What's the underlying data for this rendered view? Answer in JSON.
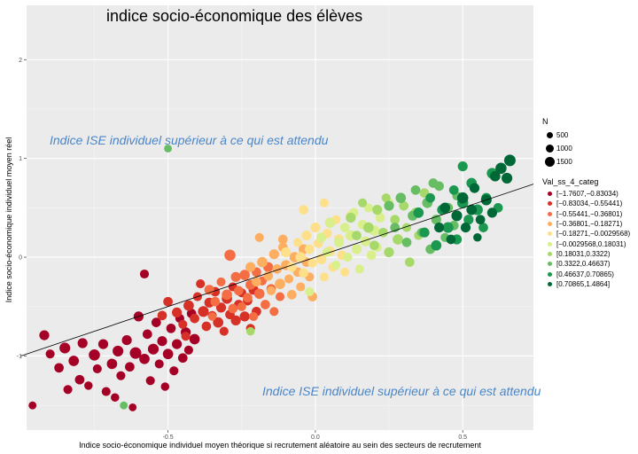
{
  "chart_data": {
    "type": "scatter",
    "title": "indice socio-économique des élèves",
    "xlabel": "Indice socio-économique individuel moyen théorique si recrutement aléatoire au sein des secteurs de recrutement",
    "ylabel": "Indice socio-économique individuel moyen réel",
    "xlim": [
      -0.98,
      0.74
    ],
    "ylim": [
      -1.75,
      2.55
    ],
    "x_ticks": [
      "-0.5",
      "0.0",
      "0.5"
    ],
    "x_tick_values": [
      -0.5,
      0.0,
      0.5
    ],
    "y_ticks": [
      "-1",
      "0",
      "1",
      "2"
    ],
    "y_tick_values": [
      -1,
      0,
      1,
      2
    ],
    "grid": true,
    "annotations": [
      {
        "text": "Indice ISE individuel supérieur à ce qui est attendu",
        "x": -0.91,
        "y": 1.27
      },
      {
        "text": "Indice ISE individuel supérieur à ce qui est attendu",
        "x": -0.19,
        "y": -1.35
      }
    ],
    "regression_line": {
      "x0": -1.0,
      "y0": -1.0,
      "x1": 0.74,
      "y1": 0.74
    },
    "size_legend": {
      "title": "N",
      "entries": [
        {
          "label": "500",
          "value": 500
        },
        {
          "label": "1000",
          "value": 1000
        },
        {
          "label": "1500",
          "value": 1500
        }
      ]
    },
    "color_legend": {
      "title": "Val_ss_4_categ",
      "categories": [
        {
          "label": "[−1.7607,−0.83034)",
          "color": "#a50026"
        },
        {
          "label": "[−0.83034,−0.55441)",
          "color": "#d73027"
        },
        {
          "label": "[−0.55441,−0.36801)",
          "color": "#f46d43"
        },
        {
          "label": "[−0.36801,−0.18271)",
          "color": "#fdae61"
        },
        {
          "label": "[−0.18271,−0.0029568)",
          "color": "#fee08b"
        },
        {
          "label": "[−0.0029568,0.18031)",
          "color": "#d9ef8b"
        },
        {
          "label": "[0.18031,0.3322)",
          "color": "#a6d96a"
        },
        {
          "label": "[0.3322,0.46637)",
          "color": "#66bd63"
        },
        {
          "label": "[0.46637,0.70865)",
          "color": "#1a9850"
        },
        {
          "label": "[0.70865,1.4864]",
          "color": "#006837"
        }
      ]
    },
    "points": [
      [
        -0.92,
        -0.79,
        400,
        0
      ],
      [
        -0.9,
        -0.98,
        300,
        0
      ],
      [
        -0.87,
        -1.12,
        350,
        0
      ],
      [
        -0.85,
        -0.92,
        500,
        0
      ],
      [
        -0.84,
        -1.34,
        300,
        0
      ],
      [
        -0.82,
        -1.05,
        450,
        0
      ],
      [
        -0.8,
        -1.24,
        350,
        0
      ],
      [
        -0.79,
        -0.87,
        400,
        0
      ],
      [
        -0.77,
        -1.3,
        250,
        0
      ],
      [
        -0.75,
        -0.99,
        550,
        0
      ],
      [
        -0.74,
        -1.13,
        300,
        0
      ],
      [
        -0.72,
        -0.88,
        400,
        0
      ],
      [
        -0.71,
        -1.36,
        300,
        0
      ],
      [
        -0.69,
        -1.08,
        450,
        0
      ],
      [
        -0.68,
        -1.42,
        250,
        0
      ],
      [
        -0.67,
        -0.95,
        500,
        0
      ],
      [
        -0.66,
        -1.2,
        300,
        0
      ],
      [
        -0.64,
        -0.84,
        400,
        0
      ],
      [
        -0.63,
        -1.11,
        350,
        0
      ],
      [
        -0.62,
        -1.52,
        200,
        0
      ],
      [
        -0.61,
        -0.97,
        600,
        0
      ],
      [
        -0.6,
        -0.6,
        400,
        0
      ],
      [
        -0.58,
        -1.03,
        450,
        0
      ],
      [
        -0.57,
        -0.78,
        350,
        0
      ],
      [
        -0.56,
        -1.25,
        300,
        0
      ],
      [
        -0.55,
        -0.93,
        500,
        0
      ],
      [
        -0.54,
        -0.66,
        350,
        0
      ],
      [
        -0.53,
        -1.08,
        300,
        0
      ],
      [
        -0.52,
        -0.85,
        400,
        0
      ],
      [
        -0.51,
        -1.31,
        250,
        0
      ],
      [
        -0.5,
        -0.98,
        450,
        0
      ],
      [
        -0.49,
        -0.72,
        350,
        0
      ],
      [
        -0.48,
        -1.15,
        300,
        0
      ],
      [
        -0.47,
        -0.88,
        400,
        0
      ],
      [
        -0.46,
        -0.62,
        300,
        0
      ],
      [
        -0.45,
        -1.02,
        350,
        0
      ],
      [
        -0.44,
        -0.76,
        400,
        0
      ],
      [
        -0.43,
        -0.94,
        300,
        0
      ],
      [
        -0.42,
        -0.57,
        350,
        0
      ],
      [
        -0.41,
        -0.83,
        450,
        0
      ],
      [
        -0.96,
        -1.5,
        200,
        0
      ],
      [
        -0.58,
        -0.17,
        300,
        0
      ],
      [
        -0.5,
        -0.45,
        350,
        1
      ],
      [
        -0.47,
        -0.56,
        400,
        1
      ],
      [
        -0.45,
        -0.68,
        300,
        1
      ],
      [
        -0.43,
        -0.49,
        450,
        1
      ],
      [
        -0.41,
        -0.62,
        350,
        1
      ],
      [
        -0.4,
        -0.4,
        300,
        1
      ],
      [
        -0.38,
        -0.55,
        500,
        1
      ],
      [
        -0.37,
        -0.7,
        350,
        1
      ],
      [
        -0.36,
        -0.46,
        400,
        1
      ],
      [
        -0.35,
        -0.59,
        300,
        1
      ],
      [
        -0.34,
        -0.35,
        350,
        1
      ],
      [
        -0.33,
        -0.66,
        450,
        1
      ],
      [
        -0.32,
        -0.51,
        400,
        1
      ],
      [
        -0.31,
        -0.75,
        300,
        1
      ],
      [
        -0.3,
        -0.42,
        450,
        1
      ],
      [
        -0.29,
        -0.58,
        350,
        1
      ],
      [
        -0.28,
        -0.3,
        300,
        1
      ],
      [
        -0.27,
        -0.64,
        400,
        1
      ],
      [
        -0.26,
        -0.48,
        350,
        1
      ],
      [
        -0.25,
        -0.36,
        300,
        1
      ],
      [
        -0.24,
        -0.6,
        400,
        1
      ],
      [
        -0.23,
        -0.44,
        350,
        1
      ],
      [
        -0.22,
        -0.72,
        300,
        1
      ],
      [
        -0.21,
        -0.33,
        400,
        1
      ],
      [
        -0.2,
        -0.55,
        350,
        1
      ],
      [
        -0.44,
        -0.8,
        300,
        1
      ],
      [
        -0.52,
        -0.59,
        350,
        1
      ],
      [
        -0.39,
        -0.27,
        300,
        1
      ],
      [
        -0.36,
        -0.33,
        400,
        2
      ],
      [
        -0.34,
        -0.45,
        350,
        2
      ],
      [
        -0.32,
        -0.25,
        300,
        2
      ],
      [
        -0.3,
        -0.38,
        450,
        2
      ],
      [
        -0.28,
        -0.52,
        350,
        2
      ],
      [
        -0.27,
        -0.2,
        400,
        2
      ],
      [
        -0.26,
        -0.34,
        350,
        2
      ],
      [
        -0.25,
        -0.5,
        300,
        2
      ],
      [
        -0.24,
        -0.18,
        450,
        2
      ],
      [
        -0.23,
        -0.41,
        350,
        2
      ],
      [
        -0.22,
        -0.28,
        400,
        2
      ],
      [
        -0.21,
        -0.6,
        300,
        2
      ],
      [
        -0.2,
        -0.15,
        350,
        2
      ],
      [
        -0.19,
        -0.37,
        450,
        2
      ],
      [
        -0.18,
        -0.24,
        300,
        2
      ],
      [
        -0.17,
        -0.48,
        350,
        2
      ],
      [
        -0.16,
        -0.1,
        400,
        2
      ],
      [
        -0.15,
        -0.32,
        350,
        2
      ],
      [
        -0.14,
        -0.55,
        300,
        2
      ],
      [
        -0.29,
        0.02,
        550,
        2
      ],
      [
        -0.12,
        -0.4,
        300,
        2
      ],
      [
        -0.35,
        -0.6,
        250,
        2
      ],
      [
        -0.22,
        -0.1,
        400,
        3
      ],
      [
        -0.2,
        -0.25,
        350,
        3
      ],
      [
        -0.18,
        -0.05,
        450,
        3
      ],
      [
        -0.16,
        -0.19,
        350,
        3
      ],
      [
        -0.15,
        -0.34,
        300,
        3
      ],
      [
        -0.14,
        0.03,
        400,
        3
      ],
      [
        -0.13,
        -0.12,
        350,
        3
      ],
      [
        -0.12,
        -0.27,
        450,
        3
      ],
      [
        -0.11,
        0.1,
        350,
        3
      ],
      [
        -0.1,
        -0.08,
        400,
        3
      ],
      [
        -0.09,
        -0.22,
        300,
        3
      ],
      [
        -0.08,
        -0.38,
        350,
        3
      ],
      [
        -0.07,
        0.0,
        450,
        3
      ],
      [
        -0.06,
        -0.15,
        350,
        3
      ],
      [
        -0.05,
        -0.3,
        300,
        3
      ],
      [
        -0.04,
        0.08,
        400,
        3
      ],
      [
        -0.03,
        -0.05,
        350,
        3
      ],
      [
        -0.02,
        -0.2,
        300,
        3
      ],
      [
        -0.01,
        -0.4,
        350,
        3
      ],
      [
        -0.19,
        0.2,
        300,
        3
      ],
      [
        -0.11,
        0.18,
        350,
        3
      ],
      [
        -0.1,
        0.05,
        400,
        4
      ],
      [
        -0.08,
        -0.1,
        350,
        4
      ],
      [
        -0.06,
        0.15,
        300,
        4
      ],
      [
        -0.05,
        0.0,
        450,
        4
      ],
      [
        -0.04,
        -0.16,
        350,
        4
      ],
      [
        -0.03,
        0.22,
        400,
        4
      ],
      [
        -0.02,
        0.08,
        350,
        4
      ],
      [
        -0.01,
        -0.06,
        300,
        4
      ],
      [
        0.0,
        0.3,
        400,
        4
      ],
      [
        0.01,
        0.14,
        350,
        4
      ],
      [
        0.02,
        -0.02,
        450,
        4
      ],
      [
        0.03,
        -0.2,
        300,
        4
      ],
      [
        0.04,
        0.24,
        350,
        4
      ],
      [
        0.05,
        0.06,
        400,
        4
      ],
      [
        0.06,
        -0.1,
        350,
        4
      ],
      [
        0.07,
        0.38,
        300,
        4
      ],
      [
        0.08,
        0.18,
        400,
        4
      ],
      [
        0.09,
        0.02,
        350,
        4
      ],
      [
        0.1,
        -0.15,
        300,
        4
      ],
      [
        -0.04,
        0.48,
        350,
        4
      ],
      [
        0.03,
        0.55,
        300,
        4
      ],
      [
        0.12,
        0.42,
        350,
        4
      ],
      [
        0.02,
        0.2,
        400,
        5
      ],
      [
        0.04,
        0.05,
        350,
        5
      ],
      [
        0.05,
        0.35,
        450,
        5
      ],
      [
        0.07,
        -0.08,
        300,
        5
      ],
      [
        0.08,
        0.15,
        400,
        5
      ],
      [
        0.1,
        0.3,
        350,
        5
      ],
      [
        0.11,
        0.0,
        300,
        5
      ],
      [
        0.12,
        0.22,
        450,
        5
      ],
      [
        0.13,
        0.45,
        350,
        5
      ],
      [
        0.14,
        0.08,
        400,
        5
      ],
      [
        0.15,
        -0.12,
        300,
        5
      ],
      [
        0.16,
        0.33,
        350,
        5
      ],
      [
        0.17,
        0.16,
        400,
        5
      ],
      [
        0.18,
        0.5,
        300,
        5
      ],
      [
        0.19,
        0.02,
        350,
        5
      ],
      [
        0.2,
        0.27,
        450,
        5
      ],
      [
        0.21,
        0.1,
        300,
        5
      ],
      [
        0.22,
        0.4,
        350,
        5
      ],
      [
        -0.02,
        -0.35,
        300,
        5
      ],
      [
        0.25,
        0.55,
        350,
        5
      ],
      [
        0.12,
        0.4,
        400,
        6
      ],
      [
        0.14,
        0.22,
        350,
        6
      ],
      [
        0.16,
        0.55,
        300,
        6
      ],
      [
        0.18,
        0.3,
        450,
        6
      ],
      [
        0.2,
        0.12,
        350,
        6
      ],
      [
        0.21,
        0.48,
        400,
        6
      ],
      [
        0.23,
        0.25,
        350,
        6
      ],
      [
        0.24,
        0.6,
        300,
        6
      ],
      [
        0.25,
        0.05,
        400,
        6
      ],
      [
        0.27,
        0.38,
        350,
        6
      ],
      [
        0.28,
        0.18,
        450,
        6
      ],
      [
        0.3,
        0.52,
        350,
        6
      ],
      [
        0.31,
        0.3,
        300,
        6
      ],
      [
        0.32,
        -0.05,
        350,
        6
      ],
      [
        0.34,
        0.45,
        400,
        6
      ],
      [
        0.35,
        0.22,
        300,
        6
      ],
      [
        0.37,
        0.65,
        350,
        6
      ],
      [
        -0.22,
        -0.75,
        250,
        6
      ],
      [
        0.25,
        0.52,
        400,
        7
      ],
      [
        0.27,
        0.3,
        350,
        7
      ],
      [
        0.29,
        0.6,
        450,
        7
      ],
      [
        0.31,
        0.15,
        350,
        7
      ],
      [
        0.33,
        0.42,
        400,
        7
      ],
      [
        0.34,
        0.68,
        350,
        7
      ],
      [
        0.36,
        0.25,
        300,
        7
      ],
      [
        0.38,
        0.55,
        450,
        7
      ],
      [
        0.39,
        0.08,
        350,
        7
      ],
      [
        0.41,
        0.38,
        400,
        7
      ],
      [
        0.42,
        0.72,
        350,
        7
      ],
      [
        0.44,
        0.2,
        300,
        7
      ],
      [
        0.45,
        0.5,
        400,
        7
      ],
      [
        0.47,
        0.32,
        350,
        7
      ],
      [
        0.48,
        0.62,
        300,
        7
      ],
      [
        0.4,
        0.75,
        350,
        7
      ],
      [
        -0.5,
        1.1,
        200,
        7
      ],
      [
        -0.65,
        -1.5,
        200,
        7
      ],
      [
        0.35,
        0.45,
        450,
        8
      ],
      [
        0.37,
        0.25,
        400,
        8
      ],
      [
        0.39,
        0.6,
        350,
        8
      ],
      [
        0.41,
        0.12,
        450,
        8
      ],
      [
        0.43,
        0.48,
        400,
        8
      ],
      [
        0.45,
        0.3,
        500,
        8
      ],
      [
        0.47,
        0.68,
        350,
        8
      ],
      [
        0.48,
        0.18,
        400,
        8
      ],
      [
        0.5,
        0.55,
        550,
        8
      ],
      [
        0.52,
        0.38,
        400,
        8
      ],
      [
        0.53,
        0.75,
        450,
        8
      ],
      [
        0.55,
        0.48,
        500,
        8
      ],
      [
        0.57,
        0.3,
        350,
        8
      ],
      [
        0.58,
        0.6,
        400,
        8
      ],
      [
        0.6,
        0.85,
        500,
        8
      ],
      [
        0.62,
        0.5,
        350,
        8
      ],
      [
        0.5,
        0.92,
        400,
        8
      ],
      [
        0.42,
        0.3,
        400,
        9
      ],
      [
        0.44,
        0.5,
        450,
        9
      ],
      [
        0.46,
        0.18,
        350,
        9
      ],
      [
        0.48,
        0.42,
        500,
        9
      ],
      [
        0.5,
        0.6,
        550,
        9
      ],
      [
        0.51,
        0.3,
        400,
        9
      ],
      [
        0.53,
        0.48,
        450,
        9
      ],
      [
        0.54,
        0.7,
        400,
        9
      ],
      [
        0.56,
        0.38,
        350,
        9
      ],
      [
        0.58,
        0.58,
        500,
        9
      ],
      [
        0.6,
        0.45,
        400,
        9
      ],
      [
        0.61,
        0.82,
        450,
        9
      ],
      [
        0.63,
        0.9,
        550,
        9
      ],
      [
        0.65,
        0.8,
        500,
        9
      ],
      [
        0.66,
        0.98,
        600,
        9
      ],
      [
        0.55,
        0.2,
        250,
        9
      ]
    ]
  }
}
